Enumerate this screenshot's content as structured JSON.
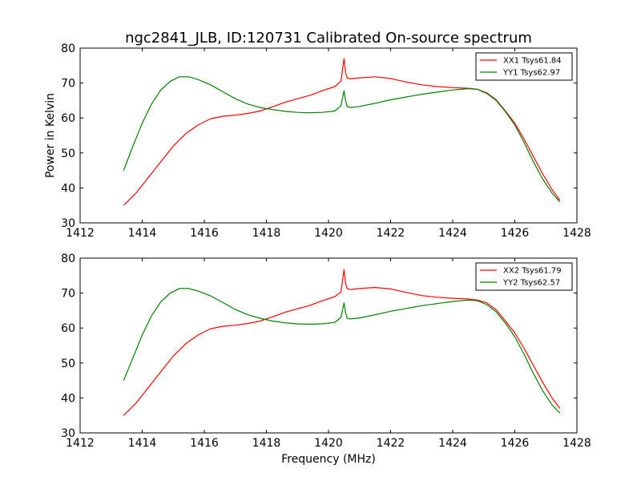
{
  "chart_data": {
    "title": "ngc2841_JLB, ID:120731 Calibrated On-source spectrum",
    "ylabel": "Power in Kelvin",
    "xlabel": "Frequency (MHz)",
    "panels": [
      {
        "type": "line",
        "xlim": [
          1412,
          1428
        ],
        "ylim": [
          30,
          80
        ],
        "xticks": [
          "1412",
          "1414",
          "1416",
          "1418",
          "1420",
          "1422",
          "1424",
          "1426",
          "1428"
        ],
        "yticks": [
          "30",
          "40",
          "50",
          "60",
          "70",
          "80"
        ],
        "legend_position": "top-right",
        "series": [
          {
            "name": "XX1 Tsys61.84",
            "color": "#ff0000",
            "x": [
              1413.4,
              1413.8,
              1414.2,
              1414.6,
              1415.0,
              1415.4,
              1415.8,
              1416.2,
              1416.6,
              1417.0,
              1417.4,
              1417.8,
              1418.2,
              1418.6,
              1419.0,
              1419.4,
              1419.8,
              1420.2,
              1420.4,
              1420.5,
              1420.55,
              1420.6,
              1420.7,
              1421.0,
              1421.5,
              1422.0,
              1422.5,
              1423.0,
              1423.5,
              1424.0,
              1424.5,
              1424.8,
              1425.1,
              1425.4,
              1425.7,
              1426.0,
              1426.3,
              1426.6,
              1426.9,
              1427.2,
              1427.45
            ],
            "y": [
              35.0,
              38.5,
              43.0,
              47.5,
              52.0,
              55.5,
              58.0,
              59.8,
              60.5,
              60.8,
              61.3,
              62.0,
              63.2,
              64.5,
              65.5,
              66.5,
              67.8,
              69.0,
              70.5,
              77.0,
              73.0,
              71.5,
              71.2,
              71.5,
              71.8,
              71.3,
              70.3,
              69.5,
              69.0,
              68.7,
              68.5,
              68.2,
              67.2,
              65.2,
              62.0,
              58.5,
              54.0,
              49.0,
              44.0,
              39.5,
              36.5
            ]
          },
          {
            "name": "YY1 Tsys62.97",
            "color": "#008000",
            "x": [
              1413.4,
              1413.7,
              1414.0,
              1414.3,
              1414.6,
              1414.9,
              1415.2,
              1415.5,
              1415.8,
              1416.2,
              1416.6,
              1417.0,
              1417.4,
              1417.8,
              1418.2,
              1418.6,
              1419.0,
              1419.4,
              1419.8,
              1420.2,
              1420.4,
              1420.5,
              1420.55,
              1420.6,
              1420.7,
              1421.0,
              1421.5,
              1422.0,
              1422.5,
              1423.0,
              1423.5,
              1424.0,
              1424.5,
              1424.8,
              1425.1,
              1425.4,
              1425.7,
              1426.0,
              1426.3,
              1426.6,
              1426.9,
              1427.2,
              1427.45
            ],
            "y": [
              45.0,
              52.0,
              58.5,
              64.0,
              68.0,
              70.5,
              71.8,
              71.8,
              71.0,
              69.5,
              67.5,
              65.5,
              64.0,
              63.0,
              62.4,
              61.9,
              61.6,
              61.5,
              61.6,
              62.0,
              63.5,
              67.8,
              65.0,
              63.3,
              63.0,
              63.3,
              64.2,
              65.2,
              66.0,
              66.8,
              67.4,
              68.0,
              68.4,
              68.2,
              67.0,
              65.0,
              61.8,
              58.0,
              53.0,
              47.5,
              42.5,
              38.5,
              36.0
            ]
          }
        ]
      },
      {
        "type": "line",
        "xlim": [
          1412,
          1428
        ],
        "ylim": [
          30,
          80
        ],
        "xticks": [
          "1412",
          "1414",
          "1416",
          "1418",
          "1420",
          "1422",
          "1424",
          "1426",
          "1428"
        ],
        "yticks": [
          "30",
          "40",
          "50",
          "60",
          "70",
          "80"
        ],
        "legend_position": "top-right",
        "series": [
          {
            "name": "XX2 Tsys61.79",
            "color": "#ff0000",
            "x": [
              1413.4,
              1413.8,
              1414.2,
              1414.6,
              1415.0,
              1415.4,
              1415.8,
              1416.2,
              1416.6,
              1417.0,
              1417.4,
              1417.8,
              1418.2,
              1418.6,
              1419.0,
              1419.4,
              1419.8,
              1420.2,
              1420.4,
              1420.5,
              1420.55,
              1420.6,
              1420.7,
              1421.0,
              1421.5,
              1422.0,
              1422.5,
              1423.0,
              1423.5,
              1424.0,
              1424.5,
              1424.8,
              1425.1,
              1425.4,
              1425.7,
              1426.0,
              1426.3,
              1426.6,
              1426.9,
              1427.2,
              1427.45
            ],
            "y": [
              35.0,
              38.5,
              43.0,
              47.5,
              52.0,
              55.5,
              58.0,
              59.8,
              60.5,
              60.8,
              61.3,
              62.0,
              63.2,
              64.5,
              65.5,
              66.5,
              67.8,
              69.0,
              70.3,
              76.7,
              72.8,
              71.3,
              71.0,
              71.3,
              71.6,
              71.2,
              70.2,
              69.3,
              68.8,
              68.5,
              68.3,
              68.0,
              67.2,
              65.2,
              62.0,
              58.6,
              54.2,
              49.3,
              44.4,
              40.0,
              37.0
            ]
          },
          {
            "name": "YY2 Tsys62.57",
            "color": "#008000",
            "x": [
              1413.4,
              1413.7,
              1414.0,
              1414.3,
              1414.6,
              1414.9,
              1415.2,
              1415.5,
              1415.8,
              1416.2,
              1416.6,
              1417.0,
              1417.4,
              1417.8,
              1418.2,
              1418.6,
              1419.0,
              1419.4,
              1419.8,
              1420.2,
              1420.4,
              1420.5,
              1420.55,
              1420.6,
              1420.7,
              1421.0,
              1421.5,
              1422.0,
              1422.5,
              1423.0,
              1423.5,
              1424.0,
              1424.5,
              1424.8,
              1425.1,
              1425.4,
              1425.7,
              1426.0,
              1426.3,
              1426.6,
              1426.9,
              1427.2,
              1427.45
            ],
            "y": [
              45.0,
              51.5,
              58.0,
              63.5,
              67.5,
              70.0,
              71.3,
              71.3,
              70.6,
              69.2,
              67.3,
              65.3,
              63.8,
              62.8,
              62.0,
              61.5,
              61.2,
              61.1,
              61.2,
              61.6,
              63.0,
              67.2,
              64.5,
              62.8,
              62.6,
              62.9,
              63.8,
              64.8,
              65.6,
              66.4,
              67.0,
              67.6,
              68.0,
              67.8,
              66.7,
              64.6,
              61.4,
              57.5,
              52.5,
              47.0,
              42.0,
              38.0,
              35.7
            ]
          }
        ]
      }
    ]
  }
}
